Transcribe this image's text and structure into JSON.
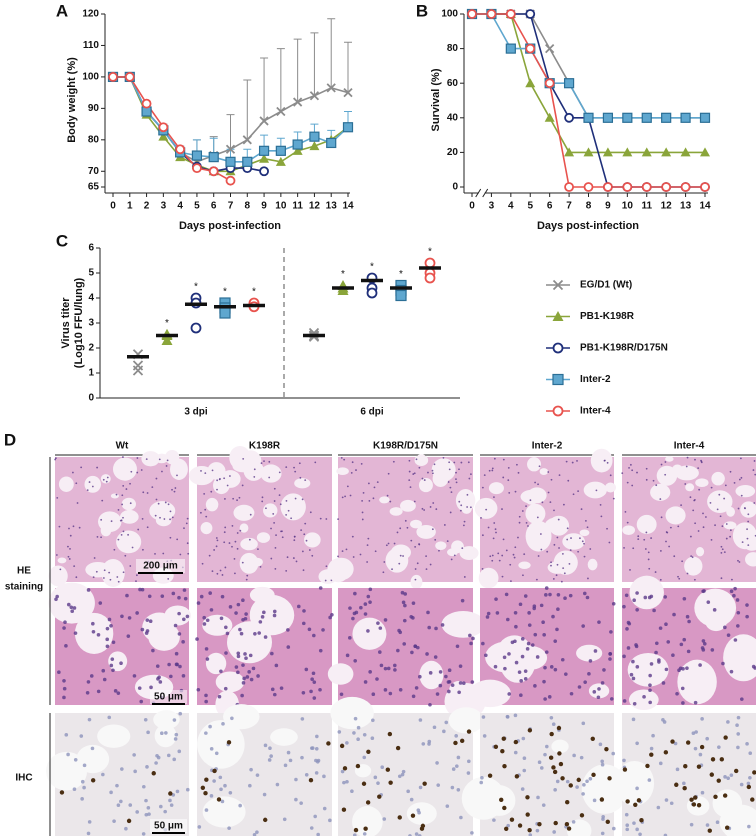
{
  "chart_data": [
    {
      "panel": "A",
      "type": "line",
      "ylabel": "Body weight (%)",
      "xlabel": "Days post-infection",
      "x": [
        0,
        1,
        2,
        3,
        4,
        5,
        6,
        7,
        8,
        9,
        10,
        11,
        12,
        13,
        14
      ],
      "xlim": [
        0,
        14
      ],
      "xticks": [
        0,
        1,
        2,
        3,
        4,
        5,
        6,
        7,
        8,
        9,
        10,
        11,
        12,
        13,
        14
      ],
      "ylim": [
        65,
        120
      ],
      "yticks": [
        65,
        70,
        80,
        90,
        100,
        110,
        120
      ],
      "series": [
        {
          "name": "EG/D1 (Wt)",
          "color": "#8c8c8c",
          "marker": "x",
          "values": [
            100,
            100,
            89,
            83,
            76,
            73,
            75,
            77,
            80,
            86,
            89,
            92,
            94,
            96.5,
            95
          ],
          "errors": [
            0,
            0,
            1,
            2,
            2,
            7,
            6,
            11,
            19,
            20,
            20,
            20,
            20,
            22,
            16
          ]
        },
        {
          "name": "PB1-K198R",
          "color": "#8aa53a",
          "marker": "triangle",
          "values": [
            100,
            100,
            88,
            81,
            74.5,
            72,
            70,
            70,
            72,
            74,
            73,
            76.5,
            78,
            80,
            84
          ]
        },
        {
          "name": "PB1-K198R/D175N",
          "color": "#1f2f7a",
          "marker": "circle",
          "values": [
            100,
            100,
            89,
            83,
            76,
            71.5,
            70,
            71,
            71,
            70,
            null,
            null,
            null,
            null,
            null
          ]
        },
        {
          "name": "Inter-2",
          "color": "#5fa7cf",
          "marker": "square",
          "values": [
            100,
            100,
            89,
            83,
            76,
            75,
            74.5,
            73,
            73,
            76.5,
            76.5,
            78.5,
            81,
            79,
            84
          ],
          "errors": [
            0,
            0,
            1,
            1,
            2,
            5,
            6,
            4,
            4,
            5,
            4,
            4,
            4,
            4,
            5
          ]
        },
        {
          "name": "Inter-4",
          "color": "#e8534e",
          "marker": "circle",
          "values": [
            100,
            100,
            91.5,
            84,
            77,
            71,
            70,
            67,
            null,
            null,
            null,
            null,
            null,
            null,
            null
          ]
        }
      ]
    },
    {
      "panel": "B",
      "type": "line",
      "ylabel": "Survival (%)",
      "xlabel": "Days post-infection",
      "categories": [
        "0",
        "3",
        "4",
        "5",
        "6",
        "7",
        "8",
        "9",
        "10",
        "11",
        "12",
        "13",
        "14"
      ],
      "axis_break": true,
      "ylim": [
        0,
        100
      ],
      "yticks": [
        0,
        20,
        40,
        60,
        80,
        100
      ],
      "series": [
        {
          "color": "#8c8c8c",
          "marker": "x",
          "values": [
            100,
            100,
            100,
            100,
            80,
            60,
            40,
            40,
            40,
            40,
            40,
            40,
            40
          ]
        },
        {
          "color": "#8aa53a",
          "marker": "triangle",
          "values": [
            100,
            100,
            100,
            60,
            40,
            20,
            20,
            20,
            20,
            20,
            20,
            20,
            20
          ]
        },
        {
          "color": "#1f2f7a",
          "marker": "circle",
          "values": [
            100,
            100,
            100,
            100,
            60,
            40,
            40,
            0,
            0,
            0,
            0,
            0,
            0
          ]
        },
        {
          "color": "#5fa7cf",
          "marker": "square",
          "values": [
            100,
            100,
            80,
            80,
            60,
            60,
            40,
            40,
            40,
            40,
            40,
            40,
            40
          ]
        },
        {
          "color": "#e8534e",
          "marker": "circle",
          "values": [
            100,
            100,
            100,
            80,
            60,
            0,
            0,
            0,
            0,
            0,
            0,
            0,
            0
          ]
        }
      ]
    },
    {
      "panel": "C",
      "type": "dot",
      "ylabel": [
        "Virus titer",
        "(Log10 FFU/lung)"
      ],
      "categories": [
        "3 dpi",
        "6 dpi"
      ],
      "divider": true,
      "ylim": [
        0,
        6
      ],
      "yticks": [
        0,
        1,
        2,
        3,
        4,
        5,
        6
      ],
      "series": [
        {
          "color": "#8c8c8c",
          "marker": "x",
          "values": [
            1.65,
            2.5
          ],
          "points": [
            [
              1.3,
              1.1,
              1.75
            ],
            [
              2.5,
              2.45,
              2.6
            ]
          ]
        },
        {
          "color": "#8aa53a",
          "marker": "triangle",
          "values": [
            2.5,
            4.4
          ],
          "points": [
            [
              2.5,
              2.55,
              2.3
            ],
            [
              4.4,
              4.3,
              4.5
            ]
          ],
          "labels": [
            "*",
            "*"
          ]
        },
        {
          "color": "#1f2f7a",
          "marker": "circle",
          "values": [
            3.75,
            4.7
          ],
          "points": [
            [
              4.0,
              3.8,
              2.8
            ],
            [
              4.8,
              4.4,
              4.2
            ]
          ],
          "labels": [
            "*",
            "*"
          ]
        },
        {
          "color": "#5fa7cf",
          "marker": "square",
          "values": [
            3.65,
            4.4
          ],
          "points": [
            [
              3.8,
              3.6,
              3.4
            ],
            [
              4.5,
              4.3,
              4.1
            ]
          ],
          "labels": [
            "*",
            "*"
          ]
        },
        {
          "color": "#e8534e",
          "marker": "circle",
          "values": [
            3.7,
            5.2
          ],
          "points": [
            [
              3.75,
              3.8,
              3.65
            ],
            [
              5.4,
              5.0,
              4.8
            ]
          ],
          "labels": [
            "*",
            "*"
          ]
        }
      ]
    }
  ],
  "panel_d": {
    "panel": "D",
    "columns": [
      "Wt",
      "K198R",
      "K198R/D175N",
      "Inter-2",
      "Inter-4"
    ],
    "row_labels": [
      [
        "HE",
        "staining"
      ],
      [
        "IHC"
      ]
    ],
    "scale_bars": [
      "200 μm",
      "50 μm",
      "50 μm"
    ]
  }
}
